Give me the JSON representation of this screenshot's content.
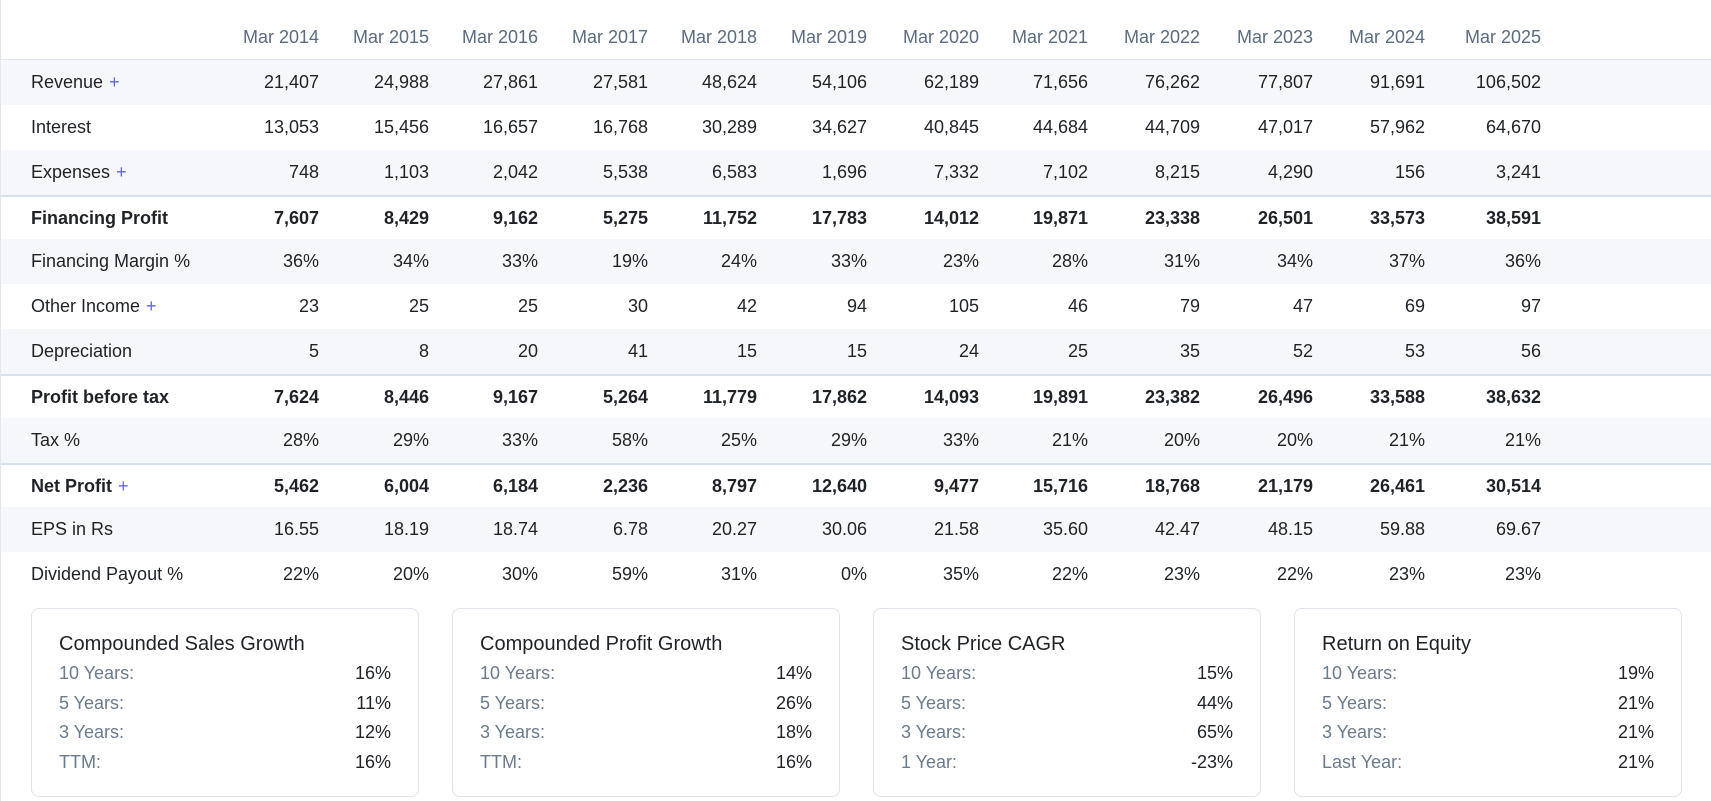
{
  "table": {
    "columns": [
      "Mar 2014",
      "Mar 2015",
      "Mar 2016",
      "Mar 2017",
      "Mar 2018",
      "Mar 2019",
      "Mar 2020",
      "Mar 2021",
      "Mar 2022",
      "Mar 2023",
      "Mar 2024",
      "Mar 2025"
    ],
    "rows": [
      {
        "label": "Revenue",
        "expand": "+",
        "values": [
          "21,407",
          "24,988",
          "27,861",
          "27,581",
          "48,624",
          "54,106",
          "62,189",
          "71,656",
          "76,262",
          "77,807",
          "91,691",
          "106,502"
        ]
      },
      {
        "label": "Interest",
        "expand": "",
        "values": [
          "13,053",
          "15,456",
          "16,657",
          "16,768",
          "30,289",
          "34,627",
          "40,845",
          "44,684",
          "44,709",
          "47,017",
          "57,962",
          "64,670"
        ]
      },
      {
        "label": "Expenses",
        "expand": "+",
        "values": [
          "748",
          "1,103",
          "2,042",
          "5,538",
          "6,583",
          "1,696",
          "7,332",
          "7,102",
          "8,215",
          "4,290",
          "156",
          "3,241"
        ]
      },
      {
        "label": "Financing Profit",
        "expand": "",
        "values": [
          "7,607",
          "8,429",
          "9,162",
          "5,275",
          "11,752",
          "17,783",
          "14,012",
          "19,871",
          "23,338",
          "26,501",
          "33,573",
          "38,591"
        ]
      },
      {
        "label": "Financing Margin %",
        "expand": "",
        "values": [
          "36%",
          "34%",
          "33%",
          "19%",
          "24%",
          "33%",
          "23%",
          "28%",
          "31%",
          "34%",
          "37%",
          "36%"
        ]
      },
      {
        "label": "Other Income",
        "expand": "+",
        "values": [
          "23",
          "25",
          "25",
          "30",
          "42",
          "94",
          "105",
          "46",
          "79",
          "47",
          "69",
          "97"
        ]
      },
      {
        "label": "Depreciation",
        "expand": "",
        "values": [
          "5",
          "8",
          "20",
          "41",
          "15",
          "15",
          "24",
          "25",
          "35",
          "52",
          "53",
          "56"
        ]
      },
      {
        "label": "Profit before tax",
        "expand": "",
        "values": [
          "7,624",
          "8,446",
          "9,167",
          "5,264",
          "11,779",
          "17,862",
          "14,093",
          "19,891",
          "23,382",
          "26,496",
          "33,588",
          "38,632"
        ]
      },
      {
        "label": "Tax %",
        "expand": "",
        "values": [
          "28%",
          "29%",
          "33%",
          "58%",
          "25%",
          "29%",
          "33%",
          "21%",
          "20%",
          "20%",
          "21%",
          "21%"
        ]
      },
      {
        "label": "Net Profit",
        "expand": "+",
        "values": [
          "5,462",
          "6,004",
          "6,184",
          "2,236",
          "8,797",
          "12,640",
          "9,477",
          "15,716",
          "18,768",
          "21,179",
          "26,461",
          "30,514"
        ]
      },
      {
        "label": "EPS in Rs",
        "expand": "",
        "values": [
          "16.55",
          "18.19",
          "18.74",
          "6.78",
          "20.27",
          "30.06",
          "21.58",
          "35.60",
          "42.47",
          "48.15",
          "59.88",
          "69.67"
        ]
      },
      {
        "label": "Dividend Payout %",
        "expand": "",
        "values": [
          "22%",
          "20%",
          "30%",
          "59%",
          "31%",
          "0%",
          "35%",
          "22%",
          "23%",
          "22%",
          "23%",
          "23%"
        ]
      }
    ]
  },
  "cards": [
    {
      "title": "Compounded Sales Growth",
      "rows": [
        {
          "key": "10 Years:",
          "value": "16%"
        },
        {
          "key": "5 Years:",
          "value": "11%"
        },
        {
          "key": "3 Years:",
          "value": "12%"
        },
        {
          "key": "TTM:",
          "value": "16%"
        }
      ]
    },
    {
      "title": "Compounded Profit Growth",
      "rows": [
        {
          "key": "10 Years:",
          "value": "14%"
        },
        {
          "key": "5 Years:",
          "value": "26%"
        },
        {
          "key": "3 Years:",
          "value": "18%"
        },
        {
          "key": "TTM:",
          "value": "16%"
        }
      ]
    },
    {
      "title": "Stock Price CAGR",
      "rows": [
        {
          "key": "10 Years:",
          "value": "15%"
        },
        {
          "key": "5 Years:",
          "value": "44%"
        },
        {
          "key": "3 Years:",
          "value": "65%"
        },
        {
          "key": "1 Year:",
          "value": "-23%"
        }
      ]
    },
    {
      "title": "Return on Equity",
      "rows": [
        {
          "key": "10 Years:",
          "value": "19%"
        },
        {
          "key": "5 Years:",
          "value": "21%"
        },
        {
          "key": "3 Years:",
          "value": "21%"
        },
        {
          "key": "Last Year:",
          "value": "21%"
        }
      ]
    }
  ],
  "colors": {
    "accent": "#6066e0",
    "muted_text": "#5b6b80",
    "row_alt_bg": "#f6f7fb",
    "border": "#e3e6ee"
  }
}
